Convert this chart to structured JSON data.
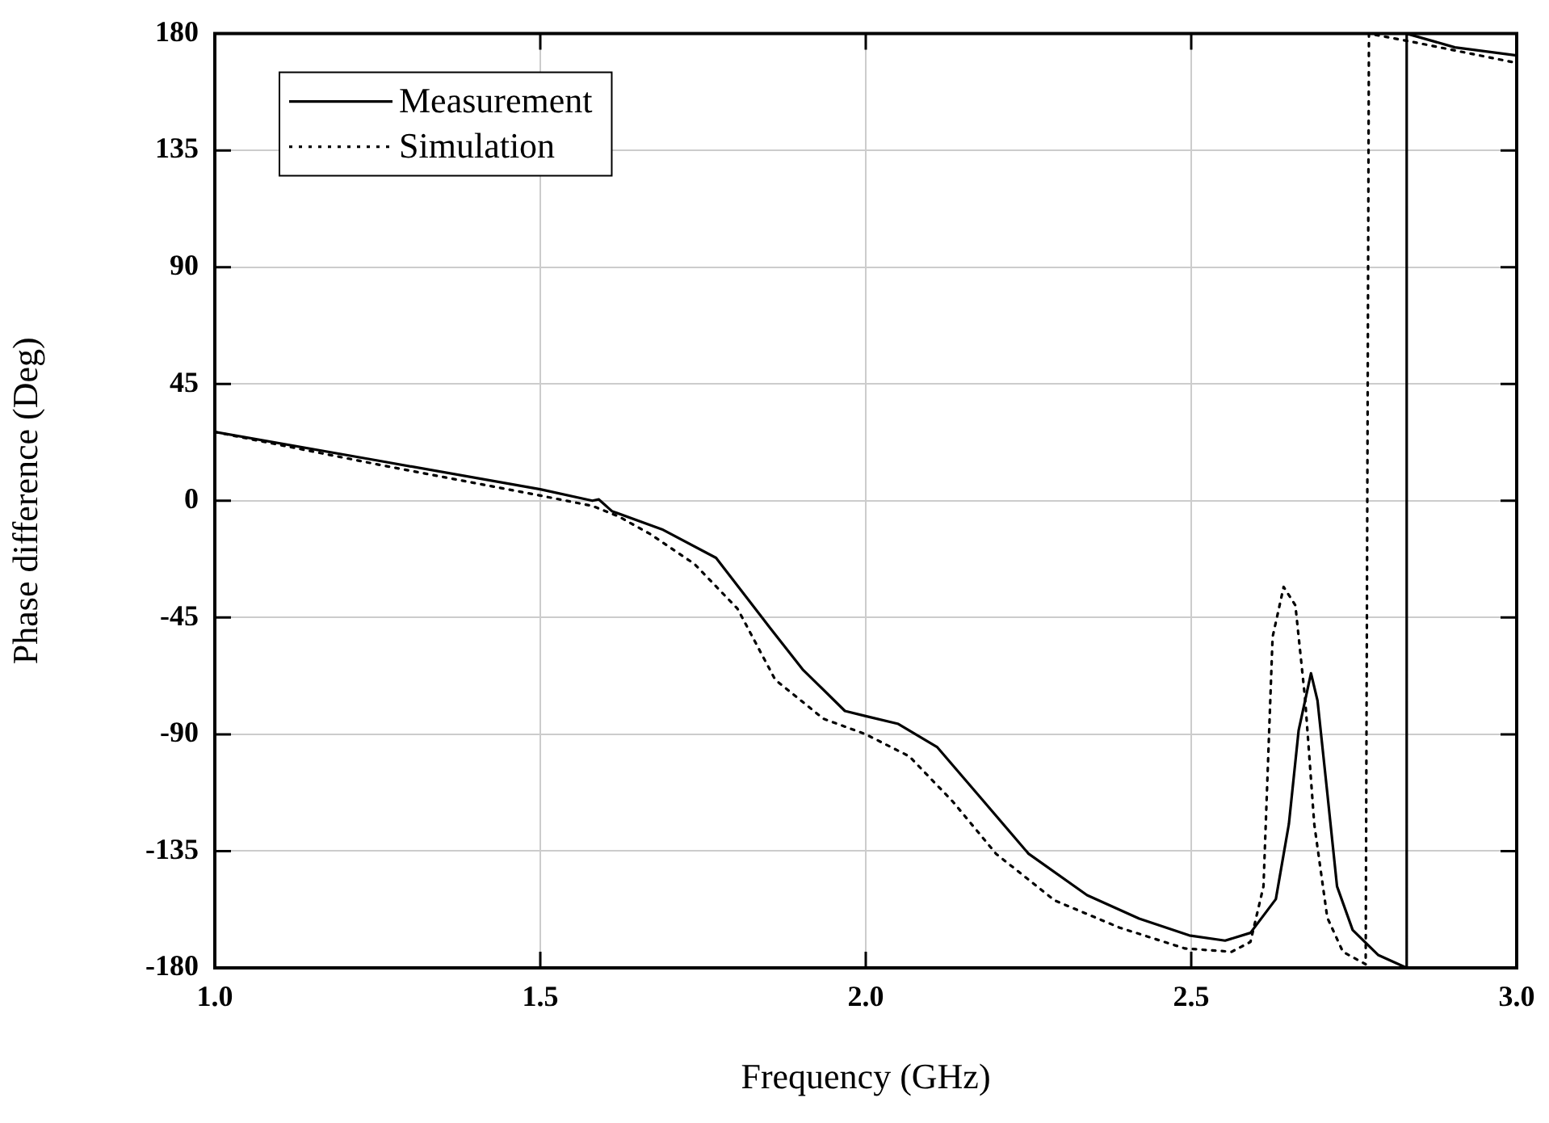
{
  "chart_data": {
    "type": "line",
    "xlabel": "Frequency (GHz)",
    "ylabel": "Phase difference (Deg)",
    "xlim": [
      1.0,
      3.0
    ],
    "xticks": [
      {
        "value": 1,
        "label": "1.0"
      },
      {
        "value": 1.5,
        "label": "1.5"
      },
      {
        "value": 2,
        "label": "2.0"
      },
      {
        "value": 2.5,
        "label": "2.5"
      },
      {
        "value": 3,
        "label": "3.0"
      }
    ],
    "ylim": [
      -180,
      180
    ],
    "yticks": [
      -180,
      -135,
      -90,
      -45,
      0,
      45,
      90,
      135,
      180
    ],
    "grid": true,
    "legend": "top left",
    "marker": "none",
    "series": [
      {
        "name": "Measurement",
        "color": "#000000",
        "line_style": "solid",
        "x": [
          1.0,
          1.25,
          1.5,
          1.58,
          1.59,
          1.61,
          1.687,
          1.77,
          1.853,
          1.903,
          1.968,
          2.0,
          2.05,
          2.11,
          2.175,
          2.25,
          2.34,
          2.42,
          2.497,
          2.552,
          2.591,
          2.63,
          2.65,
          2.665,
          2.684,
          2.694,
          2.709,
          2.724,
          2.748,
          2.787,
          2.831,
          2.831,
          2.905,
          3.0
        ],
        "values": [
          26.5,
          15.5,
          4.4,
          0,
          0.5,
          -4,
          -11,
          -22,
          -49,
          -65,
          -81,
          -83,
          -86,
          -95,
          -114,
          -136,
          -152,
          -161,
          -167.5,
          -169.5,
          -166.5,
          -153.5,
          -124.6,
          -88.5,
          -66.5,
          -77,
          -112.5,
          -148.6,
          -165.4,
          -175,
          -180,
          180,
          174.7,
          171.6
        ]
      },
      {
        "name": "Simulation",
        "color": "#000000",
        "line_style": "dotted",
        "x": [
          1.0,
          1.25,
          1.5,
          1.58,
          1.62,
          1.67,
          1.737,
          1.803,
          1.861,
          1.935,
          2.0,
          2.067,
          2.134,
          2.2,
          2.29,
          2.39,
          2.49,
          2.562,
          2.591,
          2.611,
          2.625,
          2.642,
          2.66,
          2.675,
          2.689,
          2.709,
          2.733,
          2.768,
          2.773,
          2.836,
          3.0
        ],
        "values": [
          26.5,
          14,
          2,
          -2,
          -6,
          -13,
          -24.4,
          -41.6,
          -69,
          -84,
          -90,
          -98.5,
          -116,
          -136,
          -154,
          -164.5,
          -172.5,
          -173.8,
          -170,
          -148.6,
          -52.5,
          -33.2,
          -40.3,
          -76.5,
          -124.6,
          -160.6,
          -173.8,
          -178.6,
          180,
          177,
          168.7
        ]
      }
    ]
  }
}
